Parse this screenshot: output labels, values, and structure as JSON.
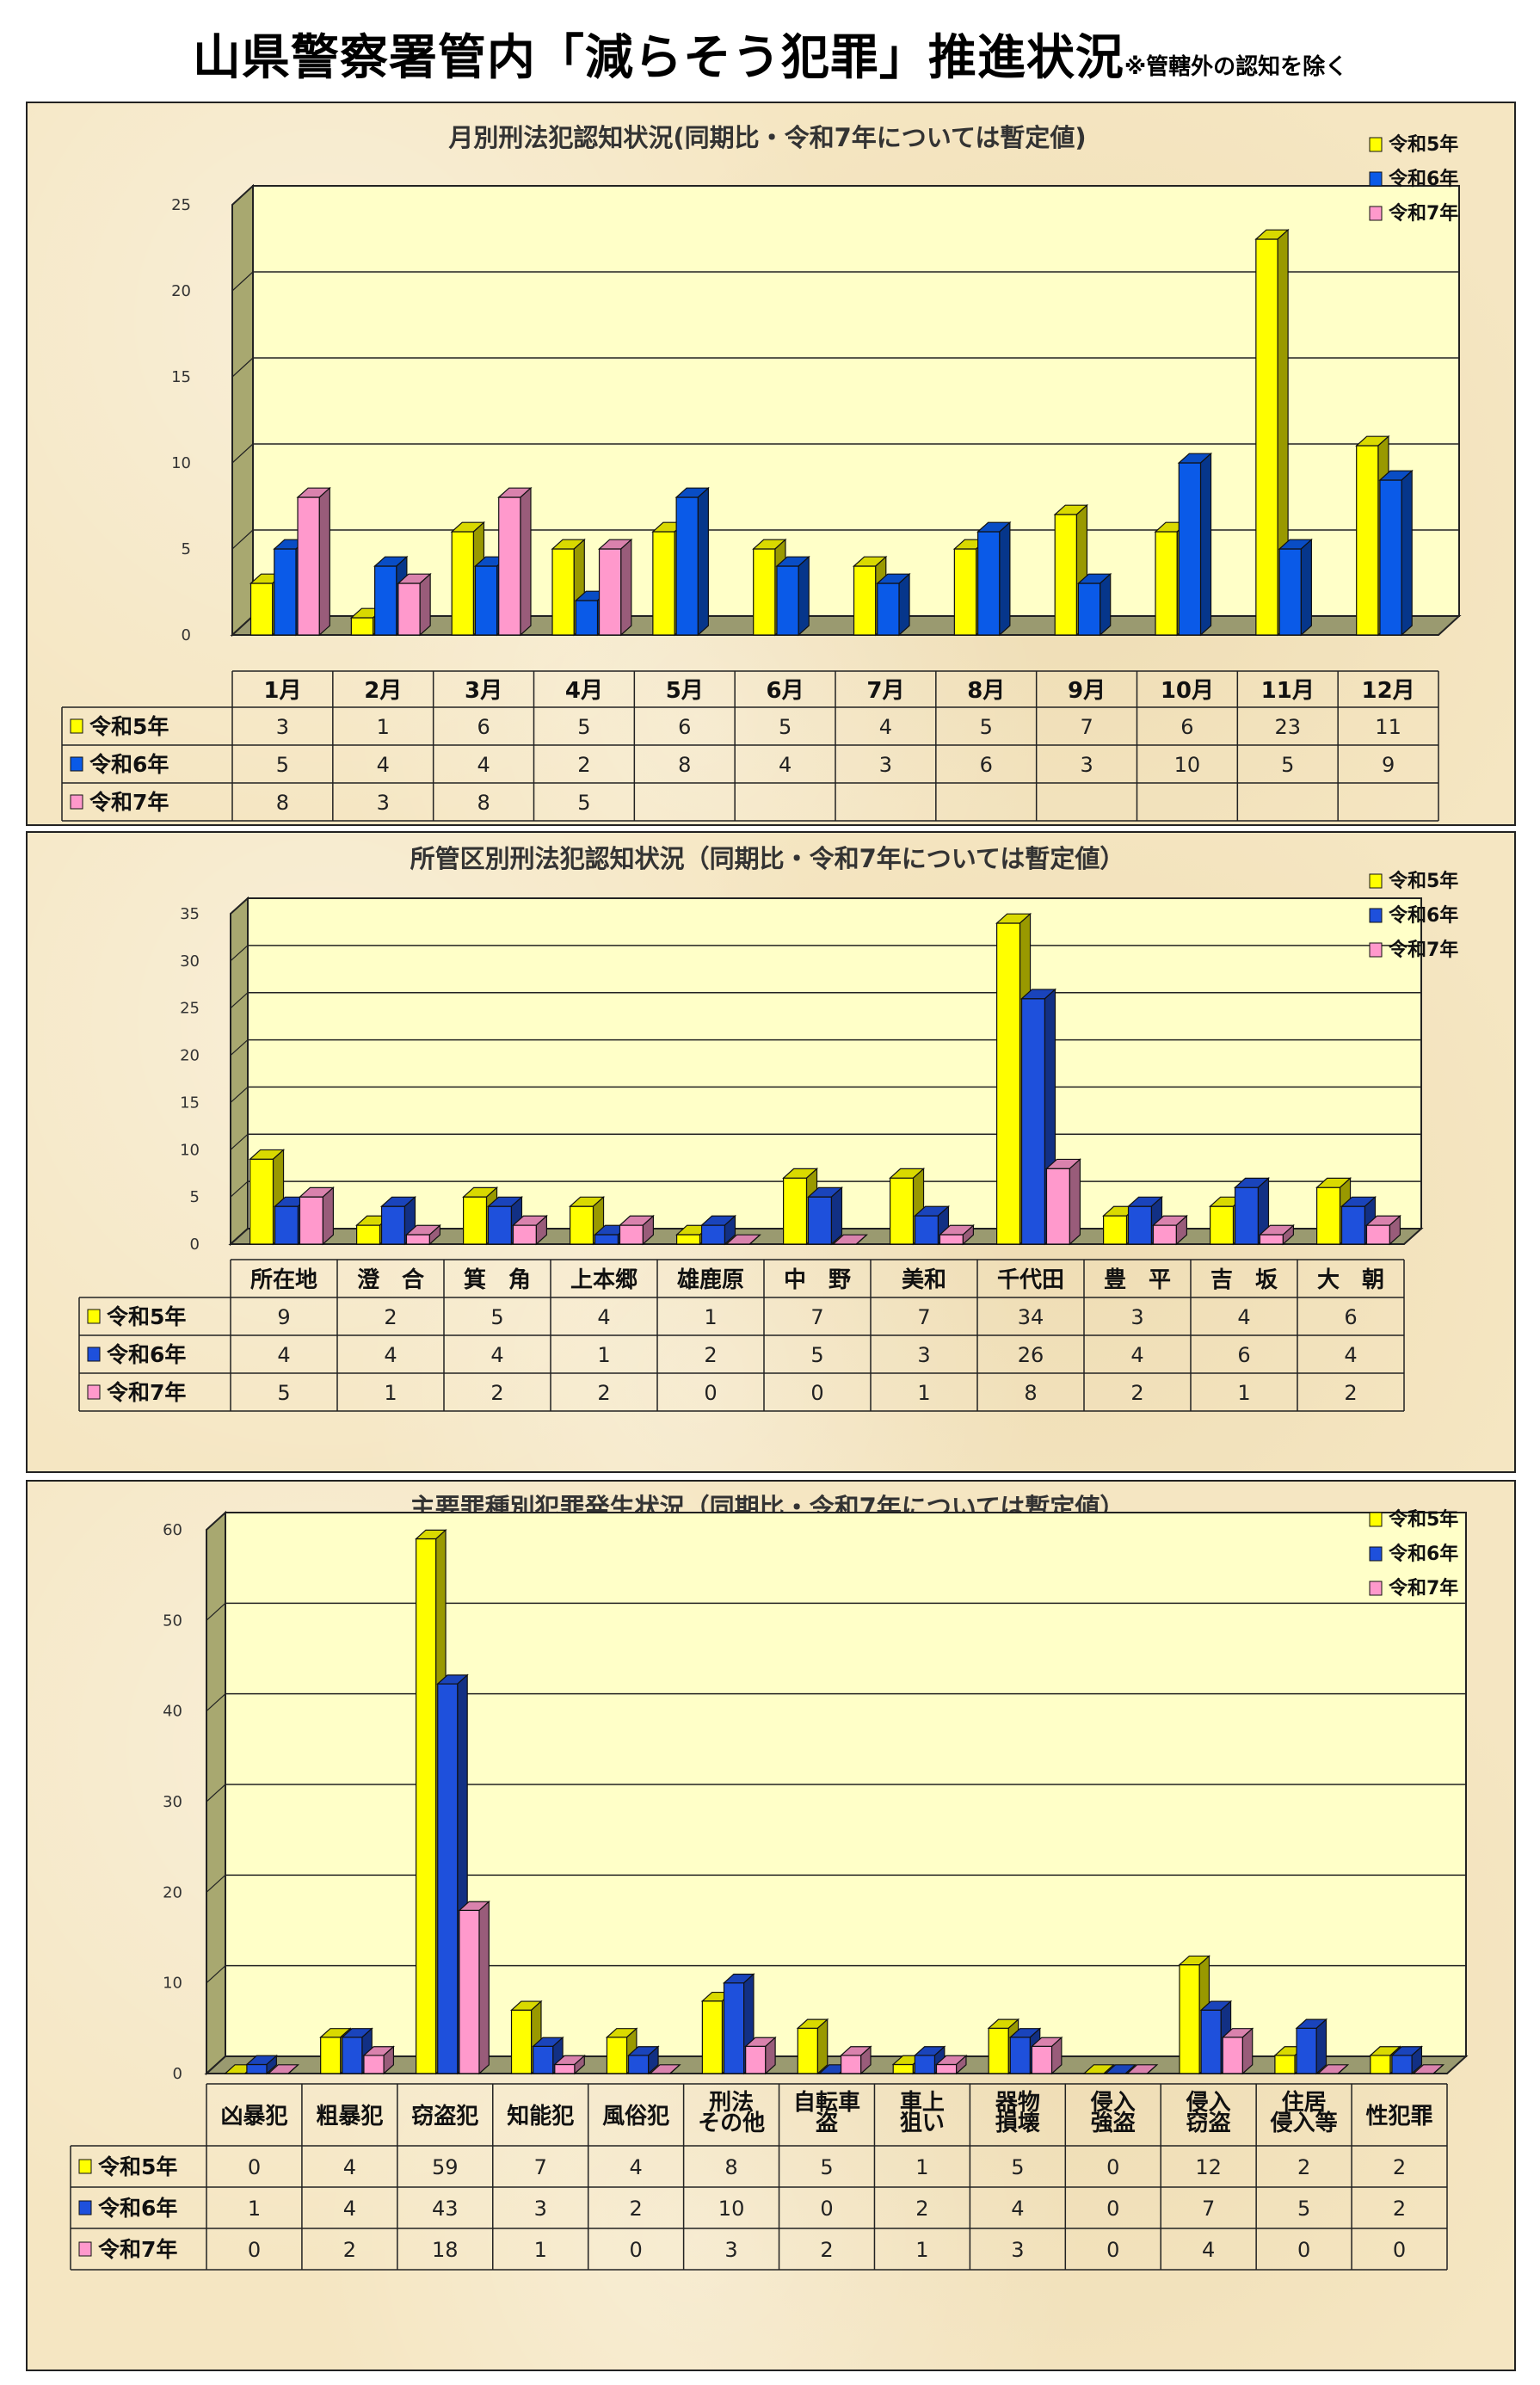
{
  "page": {
    "title": "山県警察署管内「減らそう犯罪」推進状況",
    "note": "※管轄外の認知を除く"
  },
  "chart_data": [
    {
      "type": "bar",
      "title": "月別刑法犯認知状況(同期比・令和7年については暫定値)",
      "categories": [
        "1月",
        "2月",
        "3月",
        "4月",
        "5月",
        "6月",
        "7月",
        "8月",
        "9月",
        "10月",
        "11月",
        "12月"
      ],
      "series": [
        {
          "name": "令和5年",
          "color": "#ffff00",
          "values": [
            3,
            1,
            6,
            5,
            6,
            5,
            4,
            5,
            7,
            6,
            23,
            11
          ]
        },
        {
          "name": "令和6年",
          "color": "#0a5ae8",
          "values": [
            5,
            4,
            4,
            2,
            8,
            4,
            3,
            6,
            3,
            10,
            5,
            9
          ]
        },
        {
          "name": "令和7年",
          "color": "#ff99cc",
          "values": [
            8,
            3,
            8,
            5,
            null,
            null,
            null,
            null,
            null,
            null,
            null,
            null
          ]
        }
      ],
      "ylim": [
        0,
        25
      ],
      "yticks": [
        0,
        5,
        10,
        15,
        20,
        25
      ],
      "grid": true,
      "legend": "top-right",
      "table": true
    },
    {
      "type": "bar",
      "title": "所管区別刑法犯認知状況（同期比・令和7年については暫定値）",
      "categories": [
        "所在地",
        "澄　合",
        "箕　角",
        "上本郷",
        "雄鹿原",
        "中　野",
        "美和",
        "千代田",
        "豊　平",
        "吉　坂",
        "大　朝"
      ],
      "series": [
        {
          "name": "令和5年",
          "color": "#ffff00",
          "values": [
            9,
            2,
            5,
            4,
            1,
            7,
            7,
            34,
            3,
            4,
            6
          ]
        },
        {
          "name": "令和6年",
          "color": "#1e50dc",
          "values": [
            4,
            4,
            4,
            1,
            2,
            5,
            3,
            26,
            4,
            6,
            4
          ]
        },
        {
          "name": "令和7年",
          "color": "#ff99cc",
          "values": [
            5,
            1,
            2,
            2,
            0,
            0,
            1,
            8,
            2,
            1,
            2
          ]
        }
      ],
      "ylim": [
        0,
        35
      ],
      "yticks": [
        0,
        5,
        10,
        15,
        20,
        25,
        30,
        35
      ],
      "grid": true,
      "legend": "top-right",
      "table": true
    },
    {
      "type": "bar",
      "title": "主要罪種別犯罪発生状況（同期比・令和7年については暫定値）",
      "categories": [
        [
          "凶暴犯"
        ],
        [
          "粗暴犯"
        ],
        [
          "窃盗犯"
        ],
        [
          "知能犯"
        ],
        [
          "風俗犯"
        ],
        [
          "刑法",
          "その他"
        ],
        [
          "自転車",
          "盗"
        ],
        [
          "車上",
          "狙い"
        ],
        [
          "器物",
          "損壊"
        ],
        [
          "侵入",
          "強盗"
        ],
        [
          "侵入",
          "窃盗"
        ],
        [
          "住居",
          "侵入等"
        ],
        [
          "性犯罪"
        ]
      ],
      "series": [
        {
          "name": "令和5年",
          "color": "#ffff00",
          "values": [
            0,
            4,
            59,
            7,
            4,
            8,
            5,
            1,
            5,
            0,
            12,
            2,
            2
          ]
        },
        {
          "name": "令和6年",
          "color": "#1e50dc",
          "values": [
            1,
            4,
            43,
            3,
            2,
            10,
            0,
            2,
            4,
            0,
            7,
            5,
            2
          ]
        },
        {
          "name": "令和7年",
          "color": "#ff99cc",
          "values": [
            0,
            2,
            18,
            1,
            0,
            3,
            2,
            1,
            3,
            0,
            4,
            0,
            0
          ]
        }
      ],
      "ylim": [
        0,
        60
      ],
      "yticks": [
        0,
        10,
        20,
        30,
        40,
        50,
        60
      ],
      "grid": true,
      "legend": "top-right",
      "table": true
    }
  ]
}
